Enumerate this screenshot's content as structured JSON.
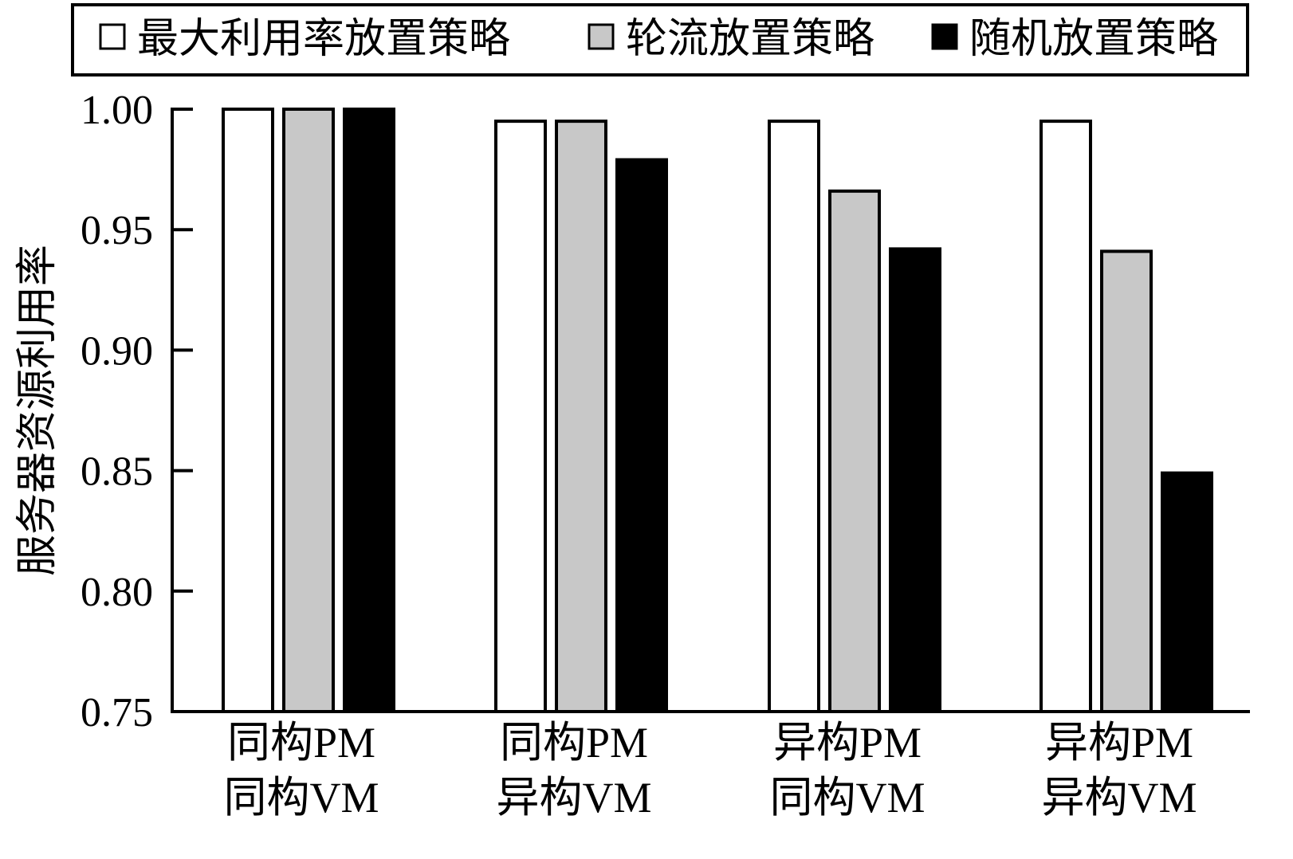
{
  "chart_data": {
    "type": "bar",
    "title": "",
    "ylabel": "服务器资源利用率",
    "xlabel": "",
    "ylim": [
      0.75,
      1.0
    ],
    "yticks": [
      "0.75",
      "0.80",
      "0.85",
      "0.90",
      "0.95",
      "1.00"
    ],
    "grid": false,
    "legend_position": "top",
    "categories": [
      [
        "同构PM",
        "同构VM"
      ],
      [
        "同构PM",
        "异构VM"
      ],
      [
        "异构PM",
        "同构VM"
      ],
      [
        "异构PM",
        "异构VM"
      ]
    ],
    "series": [
      {
        "name": "最大利用率放置策略",
        "color": "#ffffff",
        "values": [
          1.0,
          0.995,
          0.995,
          0.995
        ]
      },
      {
        "name": "轮流放置策略",
        "color": "#c8c8c8",
        "values": [
          1.0,
          0.995,
          0.966,
          0.941
        ]
      },
      {
        "name": "随机放置策略",
        "color": "#000000",
        "values": [
          1.0,
          0.979,
          0.942,
          0.849
        ]
      }
    ]
  }
}
